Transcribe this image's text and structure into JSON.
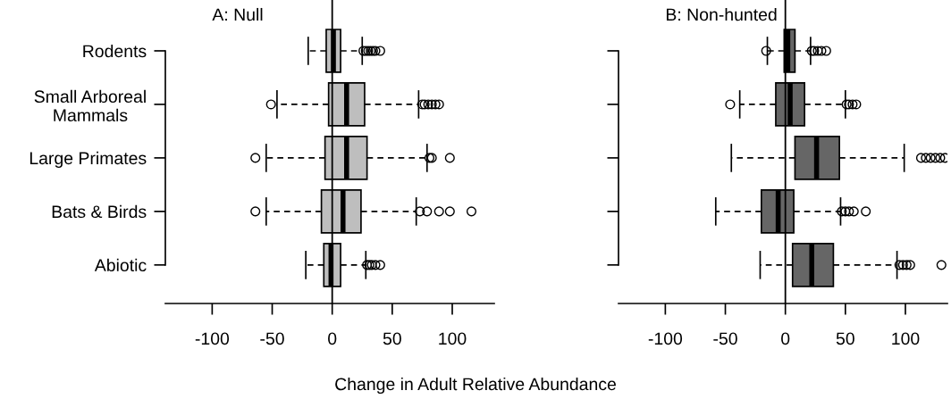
{
  "chart_data": [
    {
      "type": "box",
      "title": "A: Null",
      "xlabel": "Change in Adult Relative Abundance",
      "orientation": "horizontal",
      "categories": [
        "Rodents",
        "Small Arboreal\nMammals",
        "Large Primates",
        "Bats & Birds",
        "Abiotic"
      ],
      "xlim": [
        -139,
        135
      ],
      "xticks": [
        -100,
        -50,
        0,
        50,
        100
      ],
      "grid": false,
      "ref_lines": [
        {
          "axis": "x",
          "value": 0,
          "color": "#000000"
        }
      ],
      "series": [
        {
          "color": "#bebebe",
          "boxes": [
            {
              "low": -20,
              "q1": -5,
              "median": 1,
              "q3": 7,
              "high": 25,
              "outliers": [
                26,
                28,
                30,
                32,
                34,
                36,
                40
              ]
            },
            {
              "low": -46,
              "q1": -3,
              "median": 12,
              "q3": 27,
              "high": 72,
              "outliers": [
                -51,
                75,
                77,
                80,
                83,
                86,
                89
              ]
            },
            {
              "low": -55,
              "q1": -6,
              "median": 12,
              "q3": 29,
              "high": 79,
              "outliers": [
                -64,
                81,
                83,
                98
              ]
            },
            {
              "low": -55,
              "q1": -9,
              "median": 9,
              "q3": 24,
              "high": 70,
              "outliers": [
                -64,
                73,
                79,
                89,
                98,
                116
              ]
            },
            {
              "low": -22,
              "q1": -7,
              "median": -1,
              "q3": 7,
              "high": 28,
              "outliers": [
                29,
                31,
                33,
                36,
                40
              ]
            }
          ]
        }
      ]
    },
    {
      "type": "box",
      "title": "B: Non-hunted",
      "orientation": "horizontal",
      "categories": [
        null,
        null,
        null,
        null,
        null
      ],
      "xlim": [
        -139,
        135
      ],
      "xticks": [
        -100,
        -50,
        0,
        50,
        100
      ],
      "tick_labels": "x",
      "grid": false,
      "ref_lines": [
        {
          "axis": "x",
          "value": 0,
          "color": "#000000"
        }
      ],
      "series": [
        {
          "color": "#666666",
          "boxes": [
            {
              "low": -15,
              "q1": -1,
              "median": 2,
              "q3": 8,
              "high": 21,
              "outliers": [
                -16,
                22,
                24,
                27,
                30,
                34
              ]
            },
            {
              "low": -38,
              "q1": -8,
              "median": 4,
              "q3": 16,
              "high": 50,
              "outliers": [
                -46,
                51,
                53,
                56,
                59
              ]
            },
            {
              "low": -45,
              "q1": 8,
              "median": 26,
              "q3": 45,
              "high": 99,
              "outliers": [
                113,
                117,
                121,
                125,
                129,
                133
              ]
            },
            {
              "low": -58,
              "q1": -20,
              "median": -6,
              "q3": 7,
              "high": 46,
              "outliers": [
                47,
                50,
                53,
                57,
                67
              ]
            },
            {
              "low": -21,
              "q1": 6,
              "median": 22,
              "q3": 40,
              "high": 93,
              "outliers": [
                95,
                98,
                101,
                104,
                130
              ]
            }
          ]
        }
      ]
    }
  ]
}
